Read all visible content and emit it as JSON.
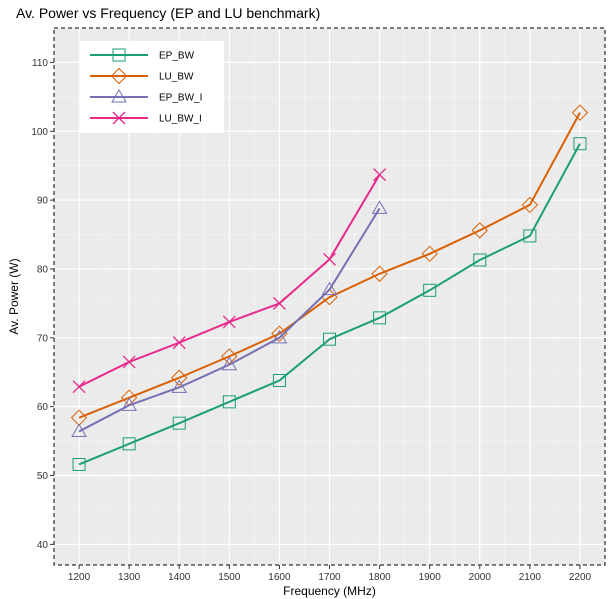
{
  "chart_data": {
    "type": "line",
    "title": "Av. Power vs Frequency (EP and LU benchmark)",
    "xlabel": "Frequency (MHz)",
    "ylabel": "Av. Power (W)",
    "xlim": [
      1150,
      2250
    ],
    "ylim": [
      37,
      115
    ],
    "xticks": [
      1200,
      1300,
      1400,
      1500,
      1600,
      1700,
      1800,
      1900,
      2000,
      2100,
      2200
    ],
    "yticks": [
      40,
      50,
      60,
      70,
      80,
      90,
      100,
      110
    ],
    "grid": true,
    "legend_position": "top-left",
    "series": [
      {
        "name": "EP_BW",
        "color": "#1b9e77",
        "marker": "square",
        "x": [
          1200,
          1300,
          1400,
          1500,
          1600,
          1700,
          1800,
          1900,
          2000,
          2100,
          2200
        ],
        "y": [
          51.6,
          54.6,
          57.6,
          60.7,
          63.8,
          69.8,
          72.9,
          76.9,
          81.3,
          84.8,
          98.2
        ]
      },
      {
        "name": "LU_BW",
        "color": "#d95f02",
        "marker": "diamond",
        "x": [
          1200,
          1300,
          1400,
          1500,
          1600,
          1700,
          1800,
          1900,
          2000,
          2100,
          2200
        ],
        "y": [
          58.4,
          61.3,
          64.2,
          67.3,
          70.6,
          75.9,
          79.3,
          82.2,
          85.6,
          89.3,
          102.7
        ]
      },
      {
        "name": "EP_BW_I",
        "color": "#7570b3",
        "marker": "triangle",
        "x": [
          1200,
          1300,
          1400,
          1500,
          1600,
          1700,
          1800
        ],
        "y": [
          56.4,
          60.2,
          62.8,
          66.1,
          70.0,
          77.0,
          88.8
        ]
      },
      {
        "name": "LU_BW_I",
        "color": "#e7298a",
        "marker": "x",
        "x": [
          1200,
          1300,
          1400,
          1500,
          1600,
          1700,
          1800
        ],
        "y": [
          62.9,
          66.5,
          69.3,
          72.3,
          75.0,
          81.4,
          93.7
        ]
      }
    ]
  }
}
